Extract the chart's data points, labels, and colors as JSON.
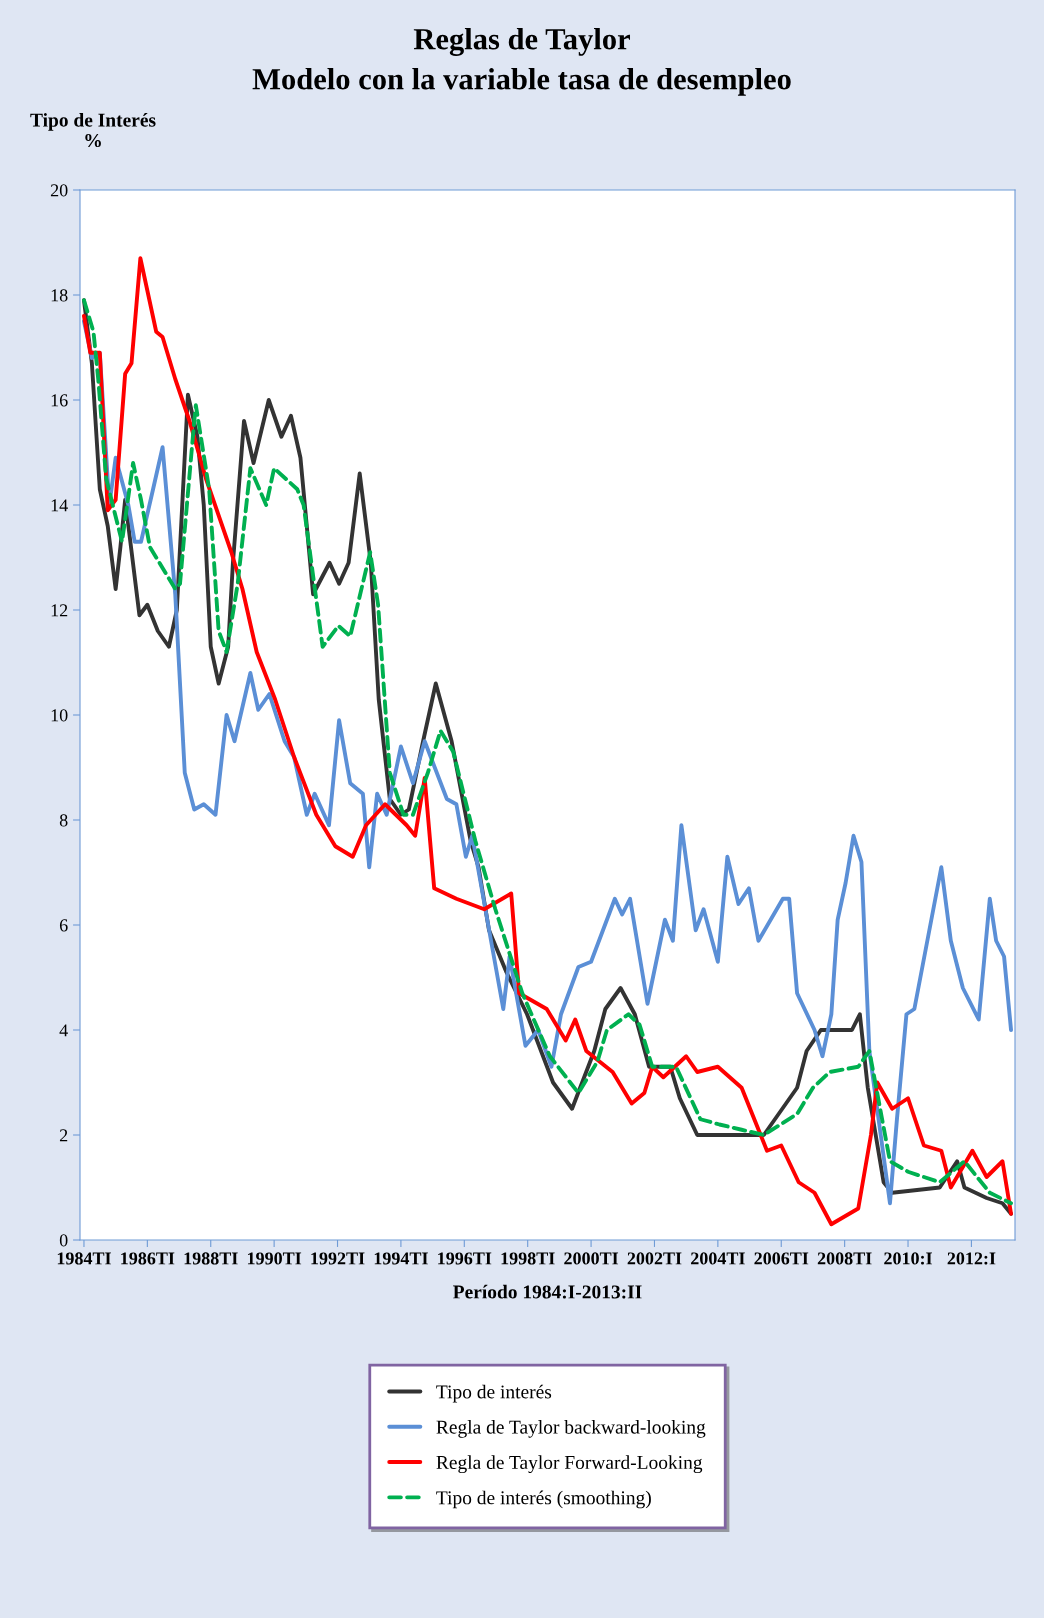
{
  "chart_data": {
    "type": "line",
    "title": "Reglas de Taylor",
    "subtitle": "Modelo con la variable tasa de desempleo",
    "xlabel": "Período 1984:I-2013:II",
    "ylabel": "Tipo de Interés\n%",
    "xlim": [
      1983.875,
      2013.375
    ],
    "xticks": [
      {
        "value": 1984,
        "label": "1984TI"
      },
      {
        "value": 1986,
        "label": "1986TI"
      },
      {
        "value": 1988,
        "label": "1988TI"
      },
      {
        "value": 1990,
        "label": "1990TI"
      },
      {
        "value": 1992,
        "label": "1992TI"
      },
      {
        "value": 1994,
        "label": "1994TI"
      },
      {
        "value": 1996,
        "label": "1996TI"
      },
      {
        "value": 1998,
        "label": "1998TI"
      },
      {
        "value": 2000,
        "label": "2000TI"
      },
      {
        "value": 2002,
        "label": "2002TI"
      },
      {
        "value": 2004,
        "label": "2004TI"
      },
      {
        "value": 2006,
        "label": "2006TI"
      },
      {
        "value": 2008,
        "label": "2008TI"
      },
      {
        "value": 2010,
        "label": "2010:I"
      },
      {
        "value": 2012,
        "label": "2012:I"
      }
    ],
    "ylim": [
      0,
      20
    ],
    "yticks": [
      0,
      2,
      4,
      6,
      8,
      10,
      12,
      14,
      16,
      18,
      20
    ],
    "legend": "bottom",
    "series": [
      {
        "name": "Tipo de interés",
        "color": "#333333",
        "line_style": "solid",
        "x": [
          1984,
          1984.25,
          1984.5,
          1984.75,
          1985,
          1985.15,
          1985.3,
          1985.75,
          1986,
          1986.33,
          1986.68,
          1986.93,
          1987.28,
          1987.58,
          1987.78,
          1988,
          1988.25,
          1988.55,
          1988.7,
          1989.05,
          1989.35,
          1989.83,
          1990.23,
          1990.53,
          1990.83,
          1991.23,
          1991.75,
          1992.05,
          1992.35,
          1992.7,
          1993.05,
          1993.3,
          1993.65,
          1994,
          1994.25,
          1994.7,
          1995.1,
          1995.6,
          1996.2,
          1996.45,
          1996.78,
          1997.33,
          1997.98,
          1998.8,
          1999.4,
          2000.1,
          2000.45,
          2000.93,
          2001.38,
          2001.83,
          2002.5,
          2002.8,
          2003.35,
          2004.75,
          2005.45,
          2006.5,
          2006.8,
          2007.25,
          2008.23,
          2008.48,
          2008.73,
          2009.23,
          2009.5,
          2011,
          2011.55,
          2011.78,
          2012.48,
          2012.98,
          2013.25
        ],
        "values": [
          17.9,
          16.7,
          14.3,
          13.6,
          12.4,
          13.2,
          14.1,
          11.9,
          12.1,
          11.6,
          11.3,
          12.0,
          16.1,
          15.3,
          14.0,
          11.3,
          10.6,
          11.3,
          12.9,
          15.6,
          14.8,
          16.0,
          15.3,
          15.7,
          14.9,
          12.3,
          12.9,
          12.5,
          12.9,
          14.6,
          12.9,
          10.3,
          8.4,
          8.1,
          8.2,
          9.5,
          10.6,
          9.5,
          7.6,
          7.1,
          5.9,
          5.1,
          4.3,
          3.0,
          2.5,
          3.6,
          4.4,
          4.8,
          4.3,
          3.3,
          3.3,
          2.7,
          2.0,
          2.0,
          2.0,
          2.9,
          3.6,
          4.0,
          4.0,
          4.3,
          2.9,
          1.1,
          0.9,
          1.0,
          1.5,
          1.0,
          0.8,
          0.7,
          0.5
        ]
      },
      {
        "name": "Regla de Taylor backward-looking",
        "color": "#5b8fd6",
        "line_style": "solid",
        "x": [
          1984,
          1984.25,
          1984.5,
          1984.8,
          1985,
          1985.4,
          1985.6,
          1985.8,
          1986.18,
          1986.48,
          1986.88,
          1987.18,
          1987.48,
          1987.78,
          1988.15,
          1988.5,
          1988.75,
          1989.25,
          1989.5,
          1989.85,
          1990.33,
          1990.63,
          1991.03,
          1991.28,
          1991.73,
          1992.05,
          1992.4,
          1992.8,
          1993,
          1993.25,
          1993.55,
          1994,
          1994.38,
          1994.75,
          1995.45,
          1995.75,
          1996.05,
          1996.25,
          1997.23,
          1997.43,
          1997.93,
          1998.33,
          1998.75,
          1999.05,
          1999.6,
          2000,
          2000.75,
          2000.98,
          2001.23,
          2001.78,
          2002.33,
          2002.58,
          2002.85,
          2003.3,
          2003.55,
          2004,
          2004.3,
          2004.65,
          2004.98,
          2005.28,
          2006.05,
          2006.25,
          2006.5,
          2007.05,
          2007.3,
          2007.58,
          2007.78,
          2008.03,
          2008.28,
          2008.53,
          2008.78,
          2009.43,
          2009.65,
          2009.95,
          2010.2,
          2011.05,
          2011.35,
          2011.73,
          2012.23,
          2012.58,
          2012.78,
          2013.03,
          2013.25
        ],
        "values": [
          17.5,
          16.8,
          16.9,
          14.0,
          14.9,
          14.0,
          13.3,
          13.3,
          14.3,
          15.1,
          12.3,
          8.9,
          8.2,
          8.3,
          8.1,
          10.0,
          9.5,
          10.8,
          10.1,
          10.4,
          9.5,
          9.2,
          8.1,
          8.5,
          7.9,
          9.9,
          8.7,
          8.5,
          7.1,
          8.5,
          8.1,
          9.4,
          8.7,
          9.5,
          8.4,
          8.3,
          7.3,
          7.7,
          4.4,
          5.4,
          3.7,
          4.0,
          3.3,
          4.3,
          5.2,
          5.3,
          6.5,
          6.2,
          6.5,
          4.5,
          6.1,
          5.7,
          7.9,
          5.9,
          6.3,
          5.3,
          7.3,
          6.4,
          6.7,
          5.7,
          6.5,
          6.5,
          4.7,
          4.0,
          3.5,
          4.3,
          6.1,
          6.8,
          7.7,
          7.2,
          3.6,
          0.7,
          2.3,
          4.3,
          4.4,
          7.1,
          5.7,
          4.8,
          4.2,
          6.5,
          5.7,
          5.4,
          4.0
        ]
      },
      {
        "name": "Regla de Taylor Forward-Looking",
        "color": "#ff0000",
        "line_style": "solid",
        "x": [
          1984,
          1984.2,
          1984.5,
          1984.75,
          1985,
          1985.3,
          1985.5,
          1985.78,
          1986.28,
          1986.48,
          1986.88,
          1987.33,
          1987.85,
          1988.65,
          1989,
          1989.45,
          1990.03,
          1990.63,
          1991.33,
          1991.93,
          1992.48,
          1992.9,
          1993.5,
          1994.18,
          1994.45,
          1994.75,
          1995.05,
          1995.75,
          1996.63,
          1997.48,
          1997.73,
          1998.6,
          1999.2,
          1999.5,
          1999.85,
          2000.68,
          2001.28,
          2001.68,
          2001.93,
          2002.28,
          2003,
          2003.35,
          2004,
          2004.75,
          2005.35,
          2005.55,
          2006,
          2006.55,
          2007.05,
          2007.58,
          2008.43,
          2008.83,
          2009.03,
          2009.5,
          2010,
          2010.5,
          2011.05,
          2011.35,
          2012.03,
          2012.48,
          2012.98,
          2013.25
        ],
        "values": [
          17.6,
          16.9,
          16.9,
          13.9,
          14.1,
          16.5,
          16.7,
          18.7,
          17.3,
          17.2,
          16.4,
          15.6,
          14.5,
          13.1,
          12.4,
          11.2,
          10.3,
          9.2,
          8.1,
          7.5,
          7.3,
          7.9,
          8.3,
          7.9,
          7.7,
          8.8,
          6.7,
          6.5,
          6.3,
          6.6,
          4.7,
          4.4,
          3.8,
          4.2,
          3.6,
          3.2,
          2.6,
          2.8,
          3.3,
          3.1,
          3.5,
          3.2,
          3.3,
          2.9,
          2.0,
          1.7,
          1.8,
          1.1,
          0.9,
          0.3,
          0.6,
          2.0,
          3.0,
          2.5,
          2.7,
          1.8,
          1.7,
          1.0,
          1.7,
          1.2,
          1.5,
          0.5
        ]
      },
      {
        "name": "Tipo de interés (smoothing)",
        "color": "#00b050",
        "line_style": "dashed",
        "x": [
          1984,
          1984.3,
          1984.45,
          1984.7,
          1985.2,
          1985.55,
          1985.8,
          1986.08,
          1986.88,
          1987.03,
          1987.48,
          1987.53,
          1987.95,
          1988.25,
          1988.5,
          1988.85,
          1989.25,
          1989.75,
          1990,
          1990.73,
          1990.93,
          1991.53,
          1992.03,
          1992.4,
          1993.03,
          1993.28,
          1993.65,
          1994.08,
          1994.38,
          1994.85,
          1995.25,
          1995.65,
          1996.35,
          1996.98,
          1997.83,
          1998.7,
          1999.6,
          2000.2,
          2000.5,
          2001.18,
          2001.53,
          2001.93,
          2002.68,
          2003.45,
          2004.05,
          2004.75,
          2005.45,
          2006.5,
          2007,
          2007.53,
          2008.43,
          2008.78,
          2009.43,
          2010,
          2011,
          2011.78,
          2012.58,
          2013.25
        ],
        "values": [
          17.9,
          17.3,
          16.4,
          14.5,
          13.3,
          14.8,
          14.1,
          13.2,
          12.4,
          12.5,
          15.6,
          15.9,
          14.3,
          11.6,
          11.2,
          12.5,
          14.7,
          14.0,
          14.7,
          14.3,
          14.0,
          11.3,
          11.7,
          11.5,
          13.1,
          12.1,
          8.9,
          8.1,
          8.1,
          8.9,
          9.7,
          9.3,
          7.6,
          6.3,
          4.7,
          3.5,
          2.8,
          3.4,
          4.0,
          4.3,
          4.1,
          3.3,
          3.3,
          2.3,
          2.2,
          2.1,
          2.0,
          2.4,
          2.9,
          3.2,
          3.3,
          3.6,
          1.5,
          1.3,
          1.1,
          1.5,
          0.9,
          0.7
        ]
      }
    ]
  }
}
